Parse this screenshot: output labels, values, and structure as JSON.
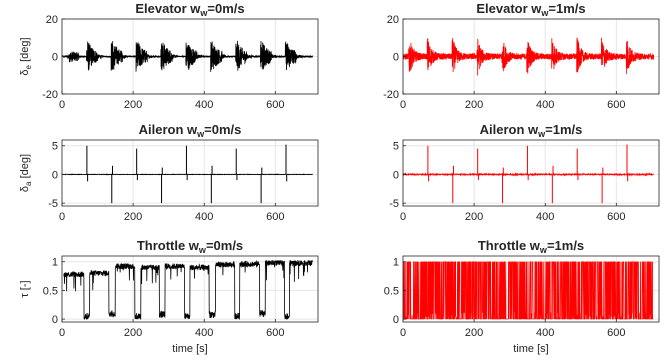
{
  "figure": {
    "xlabel": "time [s]"
  },
  "chart_data": [
    {
      "type": "line",
      "title": "Elevator w",
      "title_sub": "w",
      "title_suffix": "=0m/s",
      "ylabel": "δ",
      "ylabel_sub": "e",
      "ylabel_unit": " [deg]",
      "xlim": [
        0,
        720
      ],
      "ylim": [
        -20,
        20
      ],
      "xticks": [
        0,
        200,
        400,
        600
      ],
      "yticks": [
        -20,
        0,
        20
      ],
      "grid": true,
      "color": "#000000",
      "signal": "elevator",
      "wind": 0,
      "events": [
        18,
        70,
        140,
        210,
        280,
        350,
        420,
        490,
        560,
        630
      ],
      "trace": [
        {
          "x": 0,
          "y": 0
        },
        {
          "x": 18,
          "y": 0
        },
        {
          "x": 70,
          "y": 9
        },
        {
          "x": 70,
          "y": -8
        },
        {
          "x": 140,
          "y": 7
        },
        {
          "x": 140,
          "y": -8
        },
        {
          "x": 210,
          "y": 12
        },
        {
          "x": 210,
          "y": -9
        },
        {
          "x": 280,
          "y": 10
        },
        {
          "x": 280,
          "y": -8
        },
        {
          "x": 350,
          "y": 13
        },
        {
          "x": 350,
          "y": -9
        },
        {
          "x": 420,
          "y": 9
        },
        {
          "x": 420,
          "y": -8
        },
        {
          "x": 490,
          "y": 8
        },
        {
          "x": 490,
          "y": -7
        },
        {
          "x": 560,
          "y": 6
        },
        {
          "x": 560,
          "y": -6
        },
        {
          "x": 630,
          "y": 6
        },
        {
          "x": 630,
          "y": -12
        },
        {
          "x": 705,
          "y": 0
        }
      ]
    },
    {
      "type": "line",
      "title": "Elevator w",
      "title_sub": "w",
      "title_suffix": "=1m/s",
      "ylabel": "",
      "ylabel_sub": "",
      "ylabel_unit": "",
      "xlim": [
        0,
        720
      ],
      "ylim": [
        -20,
        20
      ],
      "xticks": [
        0,
        200,
        400,
        600
      ],
      "yticks": [
        -20,
        0,
        20
      ],
      "grid": true,
      "color": "#ff0000",
      "signal": "elevator",
      "wind": 1,
      "events": [
        18,
        70,
        140,
        210,
        280,
        350,
        420,
        490,
        560,
        630
      ],
      "trace": [
        {
          "x": 0,
          "y": 0
        },
        {
          "x": 70,
          "y": 8
        },
        {
          "x": 70,
          "y": -7
        },
        {
          "x": 140,
          "y": 7
        },
        {
          "x": 140,
          "y": -7
        },
        {
          "x": 210,
          "y": 9
        },
        {
          "x": 210,
          "y": -8
        },
        {
          "x": 280,
          "y": 10
        },
        {
          "x": 280,
          "y": -7
        },
        {
          "x": 350,
          "y": 11
        },
        {
          "x": 350,
          "y": -8
        },
        {
          "x": 420,
          "y": 8
        },
        {
          "x": 420,
          "y": -7
        },
        {
          "x": 490,
          "y": 7
        },
        {
          "x": 490,
          "y": -6
        },
        {
          "x": 560,
          "y": 7
        },
        {
          "x": 560,
          "y": -6
        },
        {
          "x": 630,
          "y": 7
        },
        {
          "x": 630,
          "y": -6
        },
        {
          "x": 705,
          "y": 0
        }
      ]
    },
    {
      "type": "line",
      "title": "Aileron w",
      "title_sub": "w",
      "title_suffix": "=0m/s",
      "ylabel": "δ",
      "ylabel_sub": "a",
      "ylabel_unit": " [deg]",
      "xlim": [
        0,
        720
      ],
      "ylim": [
        -5.5,
        6
      ],
      "xticks": [
        0,
        200,
        400,
        600
      ],
      "yticks": [
        -5,
        0,
        5
      ],
      "grid": true,
      "color": "#000000",
      "signal": "aileron",
      "wind": 0,
      "spikes": [
        {
          "x": 70,
          "y": 5
        },
        {
          "x": 72,
          "y": -1.2
        },
        {
          "x": 140,
          "y": -5
        },
        {
          "x": 142,
          "y": 1.5
        },
        {
          "x": 210,
          "y": 4.5
        },
        {
          "x": 212,
          "y": -1
        },
        {
          "x": 280,
          "y": -5
        },
        {
          "x": 282,
          "y": 1.2
        },
        {
          "x": 350,
          "y": 5
        },
        {
          "x": 352,
          "y": -1
        },
        {
          "x": 420,
          "y": -5
        },
        {
          "x": 422,
          "y": 1.5
        },
        {
          "x": 490,
          "y": 4.5
        },
        {
          "x": 492,
          "y": -1
        },
        {
          "x": 560,
          "y": -5
        },
        {
          "x": 562,
          "y": 1.2
        },
        {
          "x": 630,
          "y": 5.2
        },
        {
          "x": 632,
          "y": -1.2
        }
      ]
    },
    {
      "type": "line",
      "title": "Aileron w",
      "title_sub": "w",
      "title_suffix": "=1m/s",
      "ylabel": "",
      "ylabel_sub": "",
      "ylabel_unit": "",
      "xlim": [
        0,
        720
      ],
      "ylim": [
        -5.5,
        6
      ],
      "xticks": [
        0,
        200,
        400,
        600
      ],
      "yticks": [
        -5,
        0,
        5
      ],
      "grid": true,
      "color": "#ff0000",
      "signal": "aileron",
      "wind": 1,
      "spikes": [
        {
          "x": 70,
          "y": 5
        },
        {
          "x": 72,
          "y": -1.2
        },
        {
          "x": 140,
          "y": -5
        },
        {
          "x": 142,
          "y": 1.5
        },
        {
          "x": 210,
          "y": 4.5
        },
        {
          "x": 212,
          "y": -1
        },
        {
          "x": 280,
          "y": -5
        },
        {
          "x": 282,
          "y": 1.2
        },
        {
          "x": 350,
          "y": 5
        },
        {
          "x": 352,
          "y": -1
        },
        {
          "x": 420,
          "y": -5
        },
        {
          "x": 422,
          "y": 1.5
        },
        {
          "x": 490,
          "y": 4.5
        },
        {
          "x": 492,
          "y": -1
        },
        {
          "x": 560,
          "y": -5
        },
        {
          "x": 562,
          "y": 1.2
        },
        {
          "x": 630,
          "y": 5.2
        },
        {
          "x": 632,
          "y": -1.2
        }
      ]
    },
    {
      "type": "line",
      "title": "Throttle w",
      "title_sub": "w",
      "title_suffix": "=0m/s",
      "ylabel": "τ",
      "ylabel_sub": "",
      "ylabel_unit": " [-]",
      "xlim": [
        0,
        720
      ],
      "ylim": [
        -0.05,
        1.1
      ],
      "xticks": [
        0,
        200,
        400,
        600
      ],
      "yticks": [
        0,
        0.5,
        1
      ],
      "ytick_labels": [
        "0",
        "0.5",
        "1"
      ],
      "grid": true,
      "color": "#000000",
      "signal": "throttle",
      "wind": 0,
      "segments": [
        {
          "start": 5,
          "end": 62,
          "level": 0.78
        },
        {
          "start": 62,
          "end": 78,
          "level": 0.05
        },
        {
          "start": 78,
          "end": 132,
          "level": 0.8
        },
        {
          "start": 132,
          "end": 150,
          "level": 0.1
        },
        {
          "start": 150,
          "end": 205,
          "level": 0.92
        },
        {
          "start": 205,
          "end": 222,
          "level": 0.05
        },
        {
          "start": 222,
          "end": 274,
          "level": 0.9
        },
        {
          "start": 274,
          "end": 290,
          "level": 0.08
        },
        {
          "start": 290,
          "end": 345,
          "level": 0.92
        },
        {
          "start": 345,
          "end": 360,
          "level": 0.05
        },
        {
          "start": 360,
          "end": 414,
          "level": 0.9
        },
        {
          "start": 414,
          "end": 432,
          "level": 0.08
        },
        {
          "start": 432,
          "end": 486,
          "level": 0.95
        },
        {
          "start": 486,
          "end": 500,
          "level": 0.05
        },
        {
          "start": 500,
          "end": 556,
          "level": 0.96
        },
        {
          "start": 556,
          "end": 572,
          "level": 0.1
        },
        {
          "start": 572,
          "end": 626,
          "level": 0.98
        },
        {
          "start": 626,
          "end": 640,
          "level": 0.05
        },
        {
          "start": 640,
          "end": 705,
          "level": 0.98
        }
      ]
    },
    {
      "type": "line",
      "title": "Throttle w",
      "title_sub": "w",
      "title_suffix": "=1m/s",
      "ylabel": "",
      "ylabel_sub": "",
      "ylabel_unit": "",
      "xlim": [
        0,
        720
      ],
      "ylim": [
        -0.05,
        1.1
      ],
      "xticks": [
        0,
        200,
        400,
        600
      ],
      "yticks": [
        0,
        0.5,
        1
      ],
      "ytick_labels": [
        "0",
        "0.5",
        "1"
      ],
      "grid": true,
      "color": "#ff0000",
      "signal": "throttle_switching",
      "wind": 1,
      "range": [
        0,
        1
      ]
    }
  ]
}
